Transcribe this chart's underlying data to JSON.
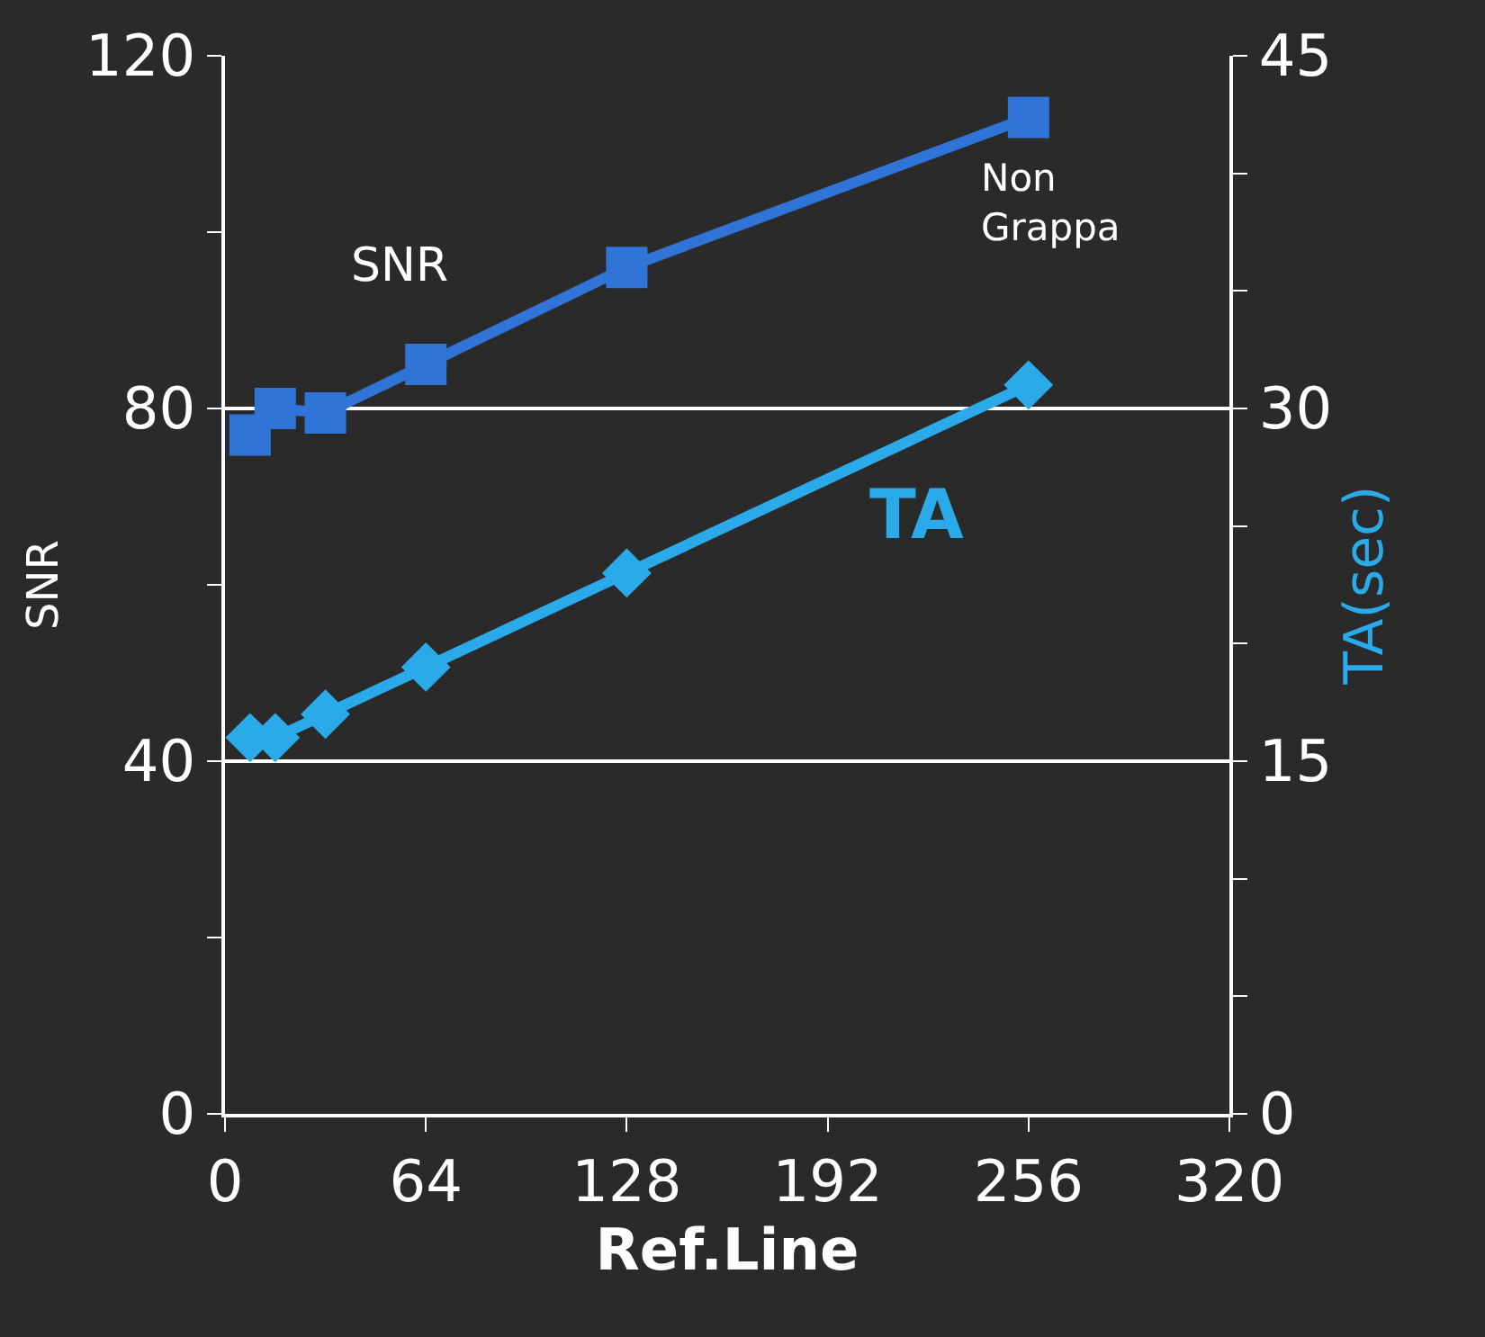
{
  "chart_data": {
    "type": "line",
    "xlabel": "Ref.Line",
    "ylabel": "SNR",
    "y2label": "TA(sec)",
    "xlim": [
      0,
      320
    ],
    "xticks": [
      0,
      64,
      128,
      192,
      256,
      320
    ],
    "ylim": [
      0,
      120
    ],
    "yticks": [
      0,
      {
        "value": 20,
        "label": null
      },
      40,
      {
        "value": 60,
        "label": null
      },
      80,
      {
        "value": 100,
        "label": null
      },
      120
    ],
    "y2lim": [
      0,
      45
    ],
    "y2ticks": [
      0,
      {
        "value": 5,
        "label": null
      },
      {
        "value": 10,
        "label": null
      },
      15,
      {
        "value": 20,
        "label": null
      },
      {
        "value": 25,
        "label": null
      },
      30,
      {
        "value": 35,
        "label": null
      },
      {
        "value": 40,
        "label": null
      },
      45
    ],
    "grid": "y",
    "legend": false,
    "series": [
      {
        "name": "SNR",
        "color": "#2f74d6",
        "marker": "square",
        "x": [
          8,
          16,
          32,
          64,
          128,
          256
        ],
        "values": [
          77,
          80,
          79.5,
          85,
          96,
          113
        ]
      },
      {
        "name": "TA",
        "color": "#2aaae8",
        "marker": "diamond",
        "axis": "y2",
        "x": [
          8,
          16,
          32,
          64,
          128,
          256
        ],
        "values": [
          16,
          16,
          17,
          19,
          23,
          31
        ]
      }
    ],
    "annotations": [
      {
        "text": "Non\nGrappa",
        "x": 256,
        "y": 113
      }
    ]
  }
}
